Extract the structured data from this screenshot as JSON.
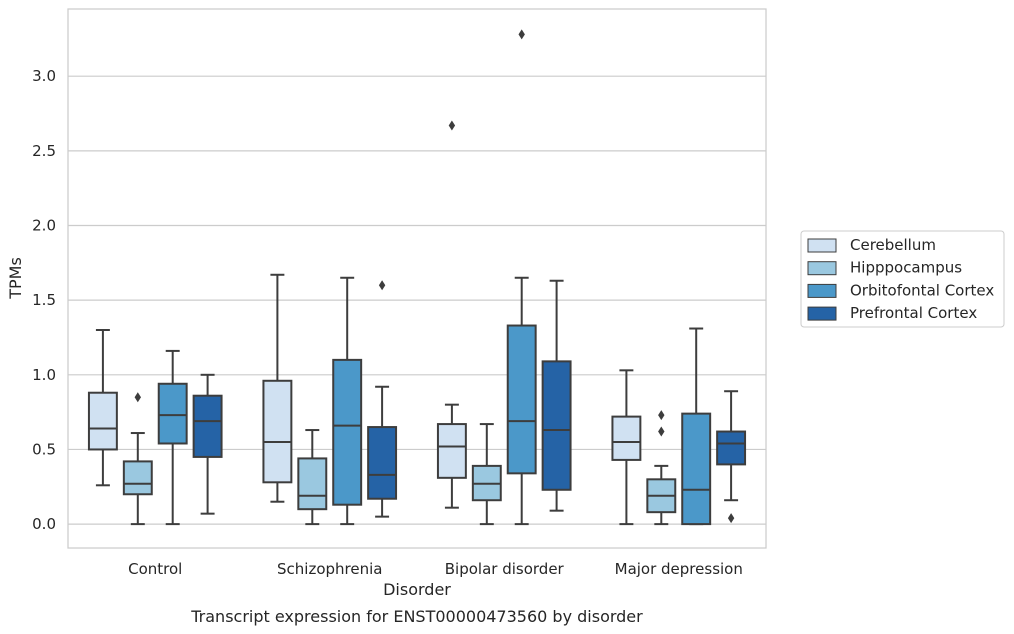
{
  "chart_data": {
    "type": "box",
    "xlabel": "Disorder",
    "ylabel": "TPMs",
    "caption": "Transcript expression for ENST00000473560 by disorder",
    "ylim": [
      -0.16,
      3.45
    ],
    "yticks": [
      "0.0",
      "0.5",
      "1.0",
      "1.5",
      "2.0",
      "2.5",
      "3.0"
    ],
    "grid": "horizontal",
    "legend_position": "right",
    "categories": [
      "Control",
      "Schizophrenia",
      "Bipolar disorder",
      "Major depression"
    ],
    "series": [
      {
        "name": "Cerebellum",
        "color": "#d0e1f2",
        "boxes": [
          {
            "whislo": 0.26,
            "q1": 0.5,
            "med": 0.64,
            "q3": 0.88,
            "whishi": 1.3,
            "fliers": []
          },
          {
            "whislo": 0.15,
            "q1": 0.28,
            "med": 0.55,
            "q3": 0.96,
            "whishi": 1.67,
            "fliers": []
          },
          {
            "whislo": 0.11,
            "q1": 0.31,
            "med": 0.52,
            "q3": 0.67,
            "whishi": 0.8,
            "fliers": [
              2.67
            ]
          },
          {
            "whislo": 0.0,
            "q1": 0.43,
            "med": 0.55,
            "q3": 0.72,
            "whishi": 1.03,
            "fliers": []
          }
        ]
      },
      {
        "name": "Hipppocampus",
        "color": "#9ac8e0",
        "boxes": [
          {
            "whislo": 0.0,
            "q1": 0.2,
            "med": 0.27,
            "q3": 0.42,
            "whishi": 0.61,
            "fliers": [
              0.85
            ]
          },
          {
            "whislo": 0.0,
            "q1": 0.1,
            "med": 0.19,
            "q3": 0.44,
            "whishi": 0.63,
            "fliers": []
          },
          {
            "whislo": 0.0,
            "q1": 0.16,
            "med": 0.27,
            "q3": 0.39,
            "whishi": 0.67,
            "fliers": []
          },
          {
            "whislo": 0.0,
            "q1": 0.08,
            "med": 0.19,
            "q3": 0.3,
            "whishi": 0.39,
            "fliers": [
              0.62,
              0.73
            ]
          }
        ]
      },
      {
        "name": "Orbitofontal Cortex",
        "color": "#4b98c9",
        "boxes": [
          {
            "whislo": 0.0,
            "q1": 0.54,
            "med": 0.73,
            "q3": 0.94,
            "whishi": 1.16,
            "fliers": []
          },
          {
            "whislo": 0.0,
            "q1": 0.13,
            "med": 0.66,
            "q3": 1.1,
            "whishi": 1.65,
            "fliers": []
          },
          {
            "whislo": 0.0,
            "q1": 0.34,
            "med": 0.69,
            "q3": 1.33,
            "whishi": 1.65,
            "fliers": [
              3.28
            ]
          },
          {
            "whislo": 0.0,
            "q1": 0.0,
            "med": 0.23,
            "q3": 0.74,
            "whishi": 1.31,
            "fliers": []
          }
        ]
      },
      {
        "name": "Prefrontal Cortex",
        "color": "#2563a6",
        "boxes": [
          {
            "whislo": 0.07,
            "q1": 0.45,
            "med": 0.69,
            "q3": 0.86,
            "whishi": 1.0,
            "fliers": []
          },
          {
            "whislo": 0.05,
            "q1": 0.17,
            "med": 0.33,
            "q3": 0.65,
            "whishi": 0.92,
            "fliers": [
              1.6
            ]
          },
          {
            "whislo": 0.09,
            "q1": 0.23,
            "med": 0.63,
            "q3": 1.09,
            "whishi": 1.63,
            "fliers": []
          },
          {
            "whislo": 0.16,
            "q1": 0.4,
            "med": 0.54,
            "q3": 0.62,
            "whishi": 0.89,
            "fliers": [
              0.04
            ]
          }
        ]
      }
    ]
  }
}
